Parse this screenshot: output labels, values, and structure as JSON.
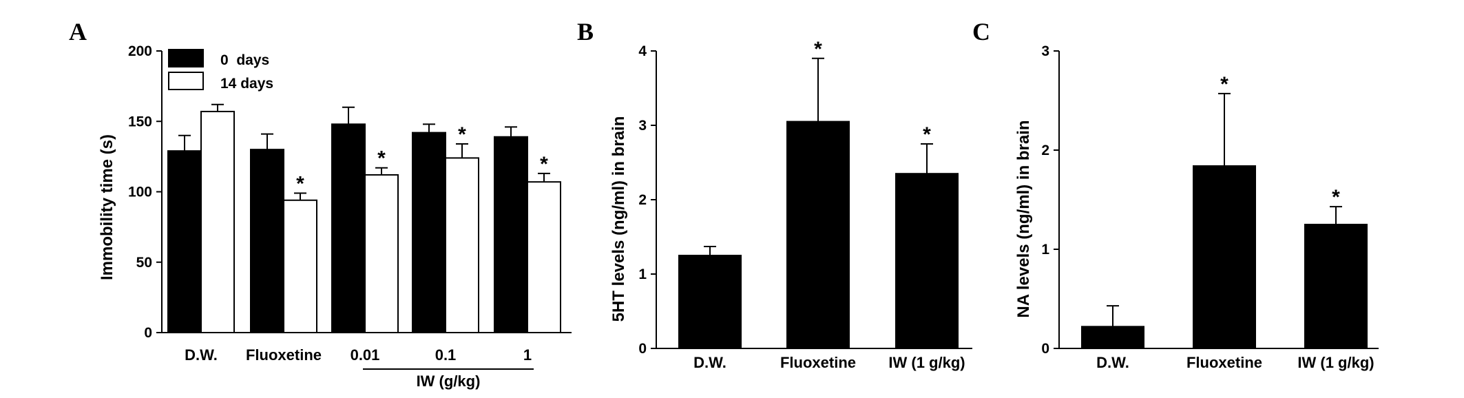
{
  "chart_data": [
    {
      "panel_label": "A",
      "type": "bar",
      "ylabel": "Immobility time (s)",
      "ylim": [
        0,
        200
      ],
      "yticks": [
        0,
        50,
        100,
        150,
        200
      ],
      "categories": [
        "D.W.",
        "Fluoxetine",
        "0.01",
        "0.1",
        "1"
      ],
      "group_label": "IW (g/kg)",
      "series": [
        {
          "name": "0  days",
          "color": "#000000",
          "values": [
            129,
            130,
            148,
            142,
            139
          ],
          "errors": [
            11,
            11,
            12,
            6,
            7
          ],
          "significant": [
            false,
            false,
            false,
            false,
            false
          ]
        },
        {
          "name": "14 days",
          "color": "#ffffff",
          "values": [
            157,
            94,
            112,
            124,
            107
          ],
          "errors": [
            5,
            5,
            5,
            10,
            6
          ],
          "significant": [
            false,
            true,
            true,
            true,
            true
          ]
        }
      ],
      "legend_position": "top-left",
      "significance_marker": "*"
    },
    {
      "panel_label": "B",
      "type": "bar",
      "ylabel": "5HT levels (ng/ml) in brain",
      "ylim": [
        0,
        4
      ],
      "yticks": [
        0,
        1,
        2,
        3,
        4
      ],
      "categories": [
        "D.W.",
        "Fluoxetine",
        "IW (1 g/kg)"
      ],
      "values": [
        1.25,
        3.05,
        2.35
      ],
      "errors": [
        0.12,
        0.85,
        0.4
      ],
      "significant": [
        false,
        true,
        true
      ],
      "significance_marker": "*"
    },
    {
      "panel_label": "C",
      "type": "bar",
      "ylabel": "NA levels (ng/ml) in brain",
      "ylim": [
        0,
        3
      ],
      "yticks": [
        0,
        1,
        2,
        3
      ],
      "categories": [
        "D.W.",
        "Fluoxetine",
        "IW (1 g/kg)"
      ],
      "values": [
        0.22,
        1.84,
        1.25
      ],
      "errors": [
        0.21,
        0.73,
        0.18
      ],
      "significant": [
        false,
        true,
        true
      ],
      "significance_marker": "*"
    }
  ]
}
